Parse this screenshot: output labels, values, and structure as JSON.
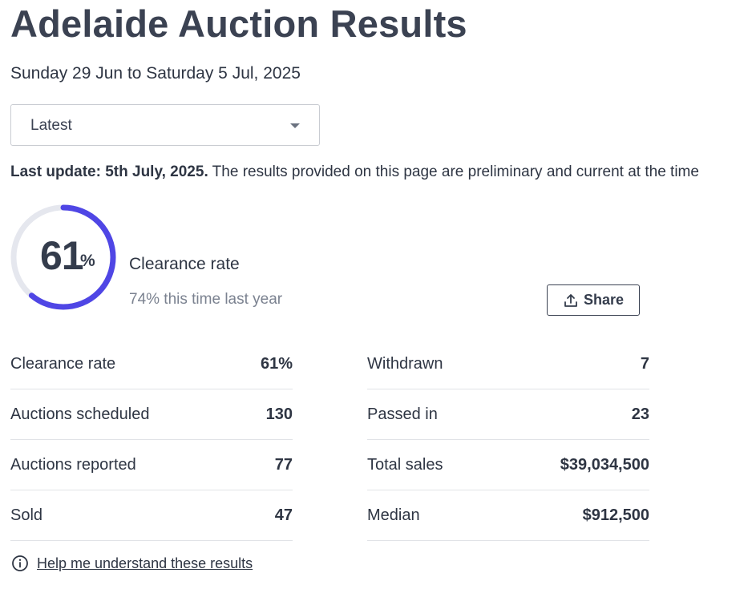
{
  "page": {
    "title": "Adelaide Auction Results",
    "date_range": "Sunday 29 Jun to Saturday 5 Jul, 2025"
  },
  "period_select": {
    "selected": "Latest"
  },
  "update": {
    "bold": "Last update: 5th July, 2025.",
    "text": " The results provided on this page are preliminary and current at the time"
  },
  "clearance": {
    "value": "61",
    "value_number": 61,
    "percent_sign": "%",
    "label": "Clearance rate",
    "last_year": "74% this time last year",
    "accent_color": "#4f46e5",
    "track_color": "#e5e7ee"
  },
  "share": {
    "label": "Share",
    "icon": "share-upload-icon"
  },
  "stats": {
    "left": [
      {
        "label": "Clearance rate",
        "value": "61%"
      },
      {
        "label": "Auctions scheduled",
        "value": "130"
      },
      {
        "label": "Auctions reported",
        "value": "77"
      },
      {
        "label": "Sold",
        "value": "47"
      }
    ],
    "right": [
      {
        "label": "Withdrawn",
        "value": "7"
      },
      {
        "label": "Passed in",
        "value": "23"
      },
      {
        "label": "Total sales",
        "value": "$39,034,500"
      },
      {
        "label": "Median",
        "value": "$912,500"
      }
    ]
  },
  "help": {
    "label": "Help me understand these results",
    "icon": "info-circle-icon"
  }
}
